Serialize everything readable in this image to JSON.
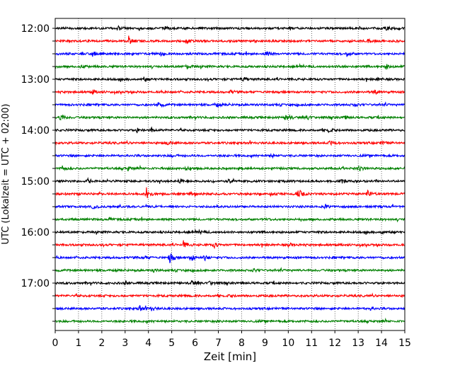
{
  "chart_data": {
    "type": "line",
    "title": "",
    "xlabel": "Zeit  [min]",
    "ylabel": "UTC (Lokalzeit = UTC + 02:00)",
    "xlim": [
      0,
      15
    ],
    "x_ticks": [
      "0",
      "1",
      "2",
      "3",
      "4",
      "5",
      "6",
      "7",
      "8",
      "9",
      "10",
      "11",
      "12",
      "13",
      "14",
      "15"
    ],
    "y_tick_labels": [
      "12:00",
      "13:00",
      "14:00",
      "15:00",
      "16:00",
      "17:00"
    ],
    "grid": "vertical dotted",
    "legend": "none",
    "trace_colors": [
      "#000000",
      "#ff0000",
      "#0000ff",
      "#008000"
    ],
    "traces": [
      {
        "start": "12:00",
        "events": [
          {
            "x": 2.7,
            "amp": 0.3
          },
          {
            "x": 4.7,
            "amp": 0.3
          },
          {
            "x": 14.2,
            "amp": 0.35
          }
        ]
      },
      {
        "start": "12:15",
        "events": [
          {
            "x": 3.15,
            "amp": 0.7
          },
          {
            "x": 5.6,
            "amp": 0.3
          },
          {
            "x": 13.4,
            "amp": 0.3
          }
        ]
      },
      {
        "start": "12:30",
        "events": [
          {
            "x": 1.6,
            "amp": 0.45
          },
          {
            "x": 4.5,
            "amp": 0.3
          },
          {
            "x": 9.0,
            "amp": 0.45
          },
          {
            "x": 12.5,
            "amp": 0.4
          }
        ]
      },
      {
        "start": "12:45",
        "events": [
          {
            "x": 1.1,
            "amp": 0.3
          },
          {
            "x": 5.6,
            "amp": 0.45
          },
          {
            "x": 12.2,
            "amp": 0.35
          },
          {
            "x": 14.2,
            "amp": 0.35
          }
        ]
      },
      {
        "start": "13:00",
        "events": [
          {
            "x": 3.8,
            "amp": 0.3
          },
          {
            "x": 8.0,
            "amp": 0.55
          },
          {
            "x": 13.8,
            "amp": 0.3
          }
        ]
      },
      {
        "start": "13:15",
        "events": [
          {
            "x": 1.6,
            "amp": 0.3
          },
          {
            "x": 7.5,
            "amp": 0.3
          },
          {
            "x": 13.7,
            "amp": 0.35
          }
        ]
      },
      {
        "start": "13:30",
        "events": [
          {
            "x": 4.4,
            "amp": 0.55
          },
          {
            "x": 6.9,
            "amp": 0.3
          },
          {
            "x": 12.8,
            "amp": 0.35
          }
        ]
      },
      {
        "start": "13:45",
        "events": [
          {
            "x": 0.2,
            "amp": 0.75
          },
          {
            "x": 9.9,
            "amp": 0.8
          },
          {
            "x": 10.8,
            "amp": 0.4
          },
          {
            "x": 12.4,
            "amp": 0.35
          }
        ]
      },
      {
        "start": "14:00",
        "events": [
          {
            "x": 3.5,
            "amp": 0.35
          },
          {
            "x": 4.1,
            "amp": 0.35
          },
          {
            "x": 11.7,
            "amp": 0.3
          }
        ]
      },
      {
        "start": "14:15",
        "events": [
          {
            "x": 4.8,
            "amp": 0.3
          },
          {
            "x": 11.8,
            "amp": 0.55
          },
          {
            "x": 14.0,
            "amp": 0.3
          }
        ]
      },
      {
        "start": "14:30",
        "events": [
          {
            "x": 5.0,
            "amp": 0.25
          },
          {
            "x": 9.3,
            "amp": 0.25
          }
        ]
      },
      {
        "start": "14:45",
        "events": [
          {
            "x": 0.3,
            "amp": 0.4
          },
          {
            "x": 3.1,
            "amp": 0.35
          },
          {
            "x": 5.6,
            "amp": 0.35
          },
          {
            "x": 13.0,
            "amp": 0.5
          }
        ]
      },
      {
        "start": "15:00",
        "events": [
          {
            "x": 1.4,
            "amp": 0.35
          },
          {
            "x": 5.3,
            "amp": 0.35
          },
          {
            "x": 7.4,
            "amp": 0.35
          },
          {
            "x": 12.3,
            "amp": 0.35
          }
        ]
      },
      {
        "start": "15:15",
        "events": [
          {
            "x": 3.9,
            "amp": 1.1
          },
          {
            "x": 10.4,
            "amp": 1.0
          },
          {
            "x": 13.4,
            "amp": 0.6
          },
          {
            "x": 9.2,
            "amp": 0.35
          }
        ]
      },
      {
        "start": "15:30",
        "events": [
          {
            "x": 1.6,
            "amp": 0.3
          },
          {
            "x": 11.6,
            "amp": 0.3
          }
        ]
      },
      {
        "start": "15:45",
        "events": [
          {
            "x": 2.3,
            "amp": 0.15
          },
          {
            "x": 9.0,
            "amp": 0.15
          }
        ]
      },
      {
        "start": "16:00",
        "events": [
          {
            "x": 6.2,
            "amp": 0.25
          },
          {
            "x": 14.0,
            "amp": 0.3
          }
        ]
      },
      {
        "start": "16:15",
        "events": [
          {
            "x": 5.5,
            "amp": 0.55
          },
          {
            "x": 6.8,
            "amp": 0.45
          },
          {
            "x": 10.0,
            "amp": 0.25
          }
        ]
      },
      {
        "start": "16:30",
        "events": [
          {
            "x": 4.9,
            "amp": 1.0
          },
          {
            "x": 5.8,
            "amp": 0.8
          },
          {
            "x": 6.4,
            "amp": 0.4
          },
          {
            "x": 3.8,
            "amp": 0.3
          }
        ]
      },
      {
        "start": "16:45",
        "events": [
          {
            "x": 8.5,
            "amp": 0.25
          },
          {
            "x": 4.2,
            "amp": 0.2
          }
        ]
      },
      {
        "start": "17:00",
        "events": [
          {
            "x": 5.8,
            "amp": 0.45
          },
          {
            "x": 6.6,
            "amp": 0.35
          },
          {
            "x": 3.0,
            "amp": 0.25
          }
        ]
      },
      {
        "start": "17:15",
        "events": [
          {
            "x": 7.5,
            "amp": 0.1
          }
        ]
      },
      {
        "start": "17:30",
        "events": [
          {
            "x": 3.6,
            "amp": 0.5
          },
          {
            "x": 4.1,
            "amp": 0.5
          },
          {
            "x": 13.5,
            "amp": 0.25
          }
        ]
      },
      {
        "start": "17:45",
        "events": [
          {
            "x": 7.0,
            "amp": 0.1
          }
        ]
      }
    ]
  }
}
